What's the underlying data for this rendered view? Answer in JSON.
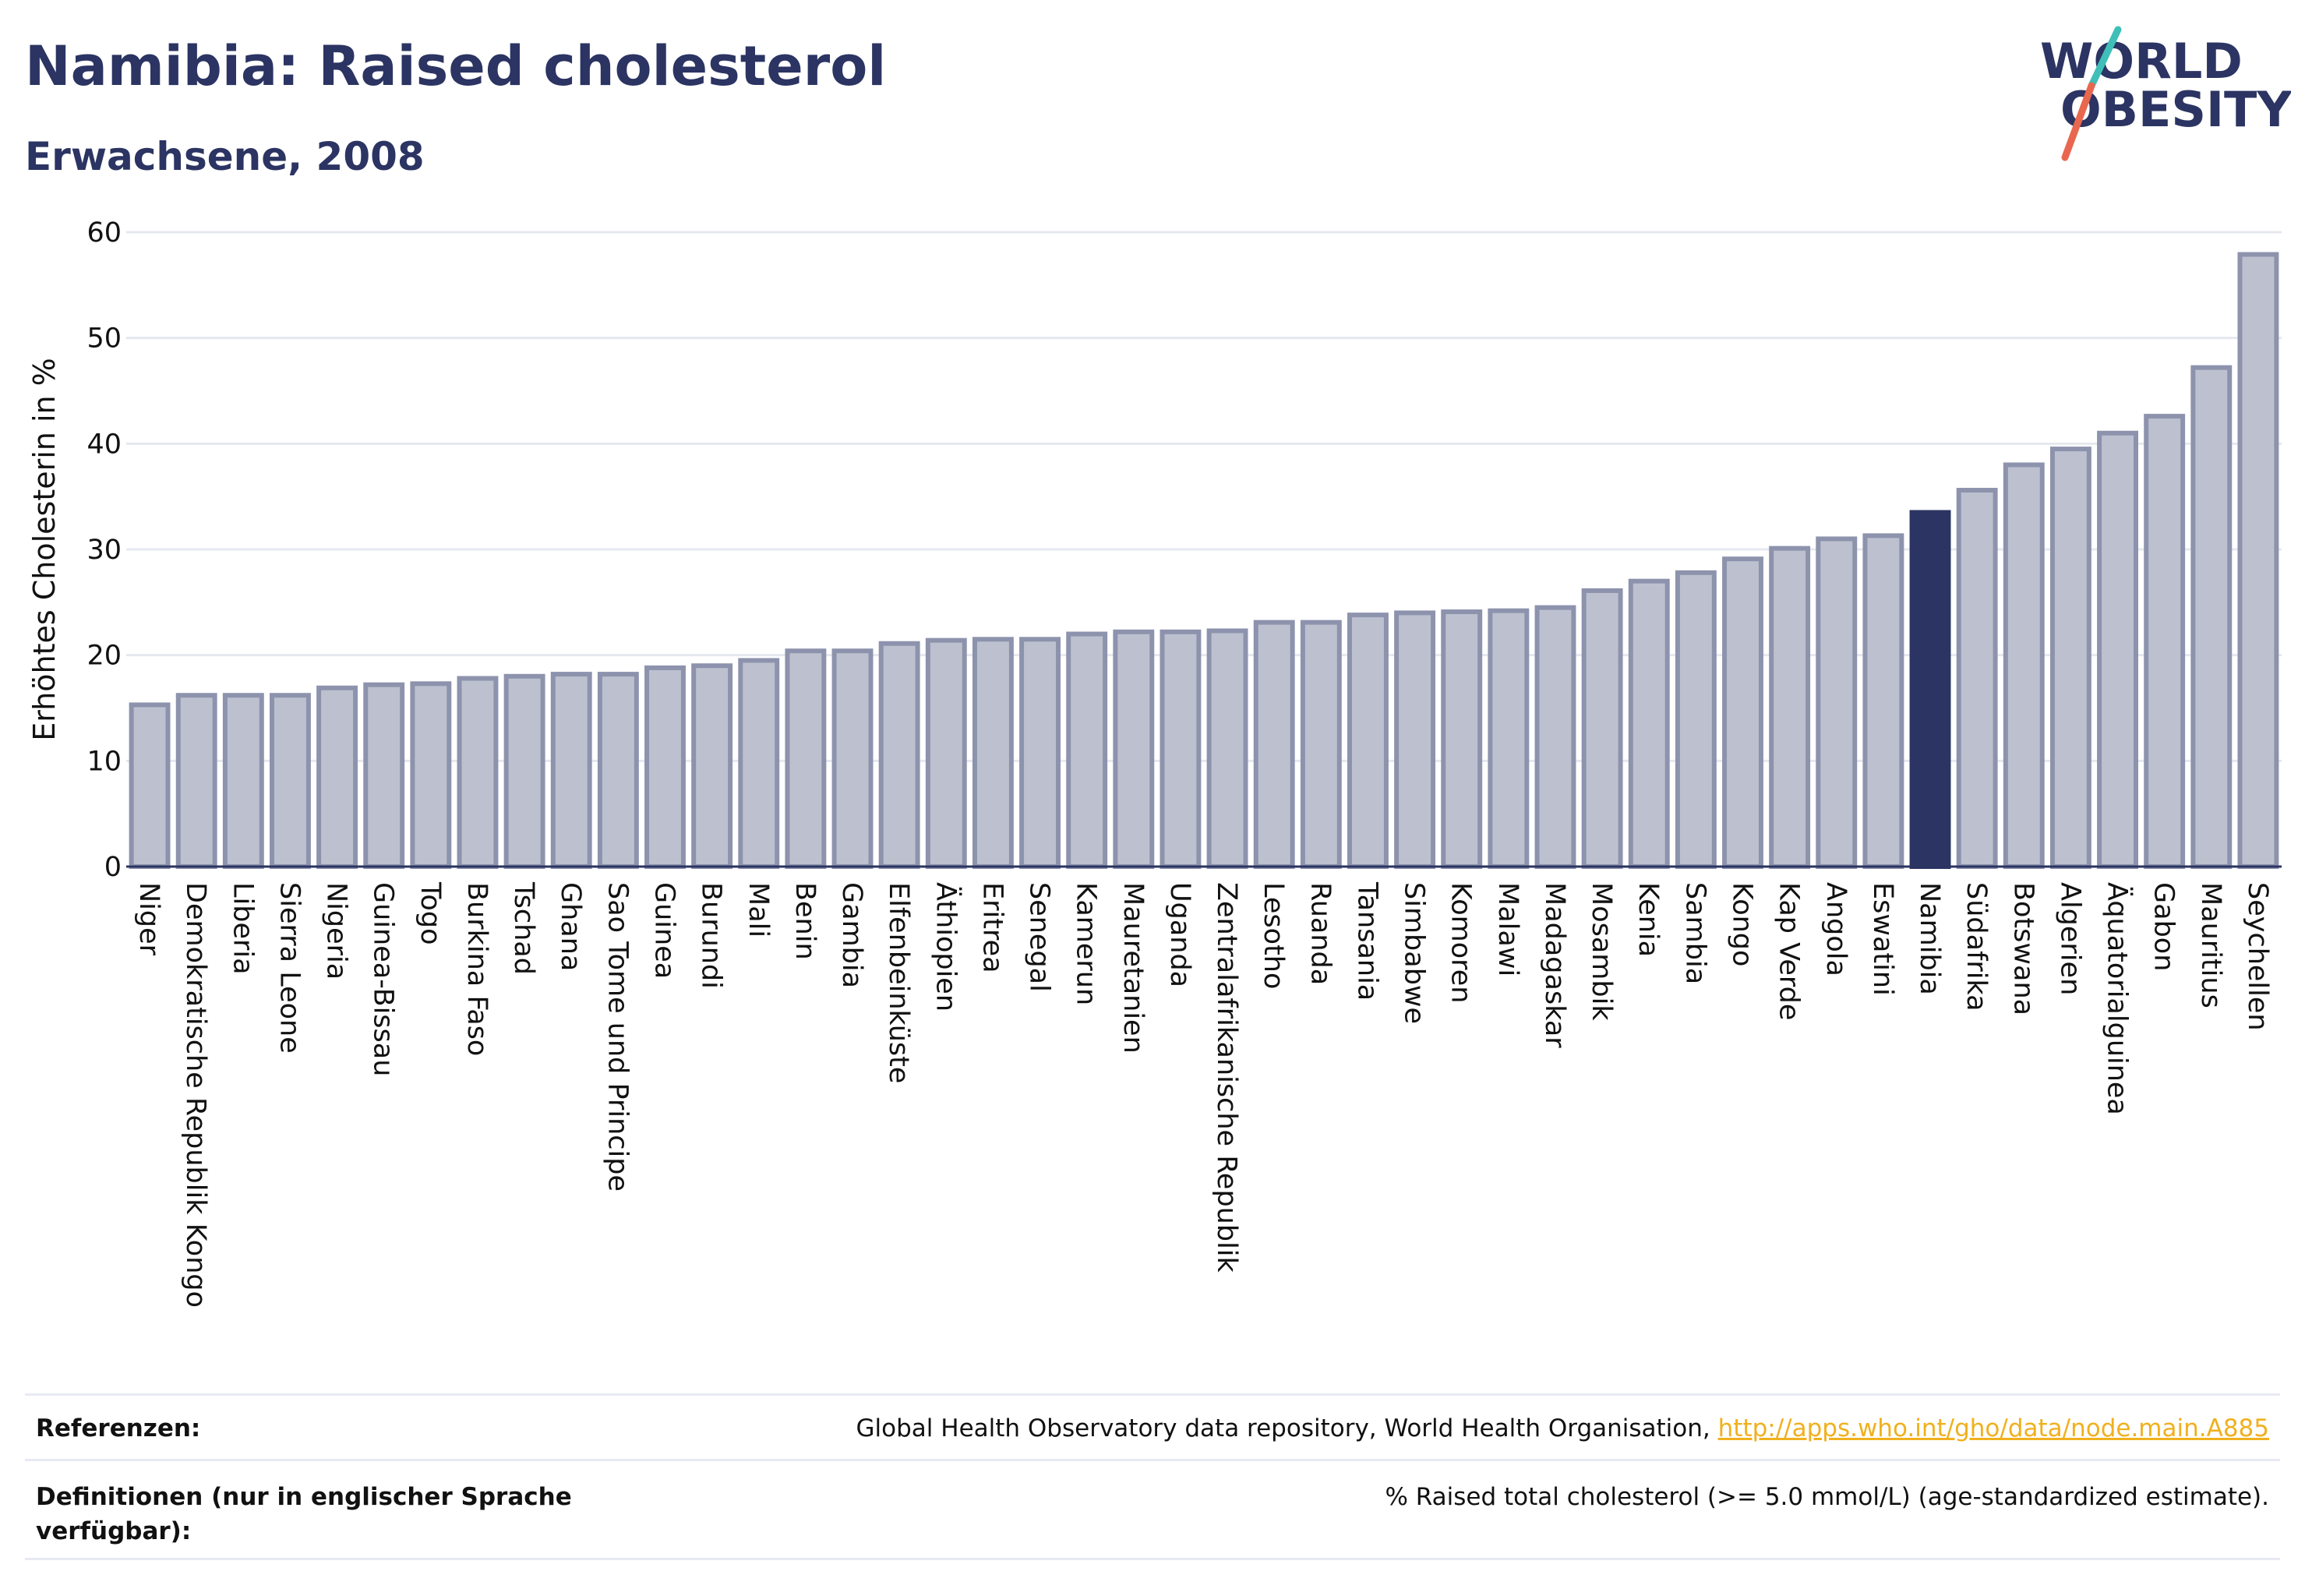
{
  "header": {
    "title": "Namibia: Raised cholesterol",
    "subtitle": "Erwachsene, 2008"
  },
  "logo": {
    "line1": "WORLD",
    "line2": "OBESITY",
    "text_color": "#2b3462",
    "slash_top_color": "#3fbfb8",
    "slash_bottom_color": "#e8674e"
  },
  "colors": {
    "bar_fill": "#bdc1cf",
    "bar_stroke": "#8d93ad",
    "highlight": "#2b3462",
    "grid": "#e6e8ef"
  },
  "chart_data": {
    "type": "bar",
    "ylabel": "Erhöhtes Cholesterin in %",
    "xlabel": "",
    "ylim": [
      0,
      60
    ],
    "yticks": [
      0,
      10,
      20,
      30,
      40,
      50,
      60
    ],
    "grid": true,
    "highlight": "Namibia",
    "categories": [
      "Niger",
      "Demokratische Republik Kongo",
      "Liberia",
      "Sierra Leone",
      "Nigeria",
      "Guinea-Bissau",
      "Togo",
      "Burkina Faso",
      "Tschad",
      "Ghana",
      "Sao Tome und Principe",
      "Guinea",
      "Burundi",
      "Mali",
      "Benin",
      "Gambia",
      "Elfenbeinküste",
      "Äthiopien",
      "Eritrea",
      "Senegal",
      "Kamerun",
      "Mauretanien",
      "Uganda",
      "Zentralafrikanische Republik",
      "Lesotho",
      "Ruanda",
      "Tansania",
      "Simbabwe",
      "Komoren",
      "Malawi",
      "Madagaskar",
      "Mosambik",
      "Kenia",
      "Sambia",
      "Kongo",
      "Kap Verde",
      "Angola",
      "Eswatini",
      "Namibia",
      "Südafrika",
      "Botswana",
      "Algerien",
      "Äquatorialguinea",
      "Gabon",
      "Mauritius",
      "Seychellen"
    ],
    "values": [
      15.3,
      16.2,
      16.2,
      16.2,
      16.9,
      17.2,
      17.3,
      17.8,
      18.0,
      18.2,
      18.2,
      18.8,
      19.0,
      19.5,
      20.4,
      20.4,
      21.1,
      21.4,
      21.5,
      21.5,
      22.0,
      22.2,
      22.2,
      22.3,
      23.1,
      23.1,
      23.8,
      24.0,
      24.1,
      24.2,
      24.5,
      26.1,
      27.0,
      27.8,
      29.1,
      30.1,
      31.0,
      31.3,
      33.5,
      35.6,
      38.0,
      39.5,
      41.0,
      42.6,
      47.2,
      57.9
    ]
  },
  "footer": {
    "references_label": "Referenzen:",
    "references_text": "Global Health Observatory data repository, World Health Organisation, ",
    "references_link": "http://apps.who.int/gho/data/node.main.A885",
    "definitions_label": "Definitionen (nur in englischer Sprache verfügbar):",
    "definitions_text": "% Raised total cholesterol (>= 5.0 mmol/L) (age-standardized estimate)."
  }
}
